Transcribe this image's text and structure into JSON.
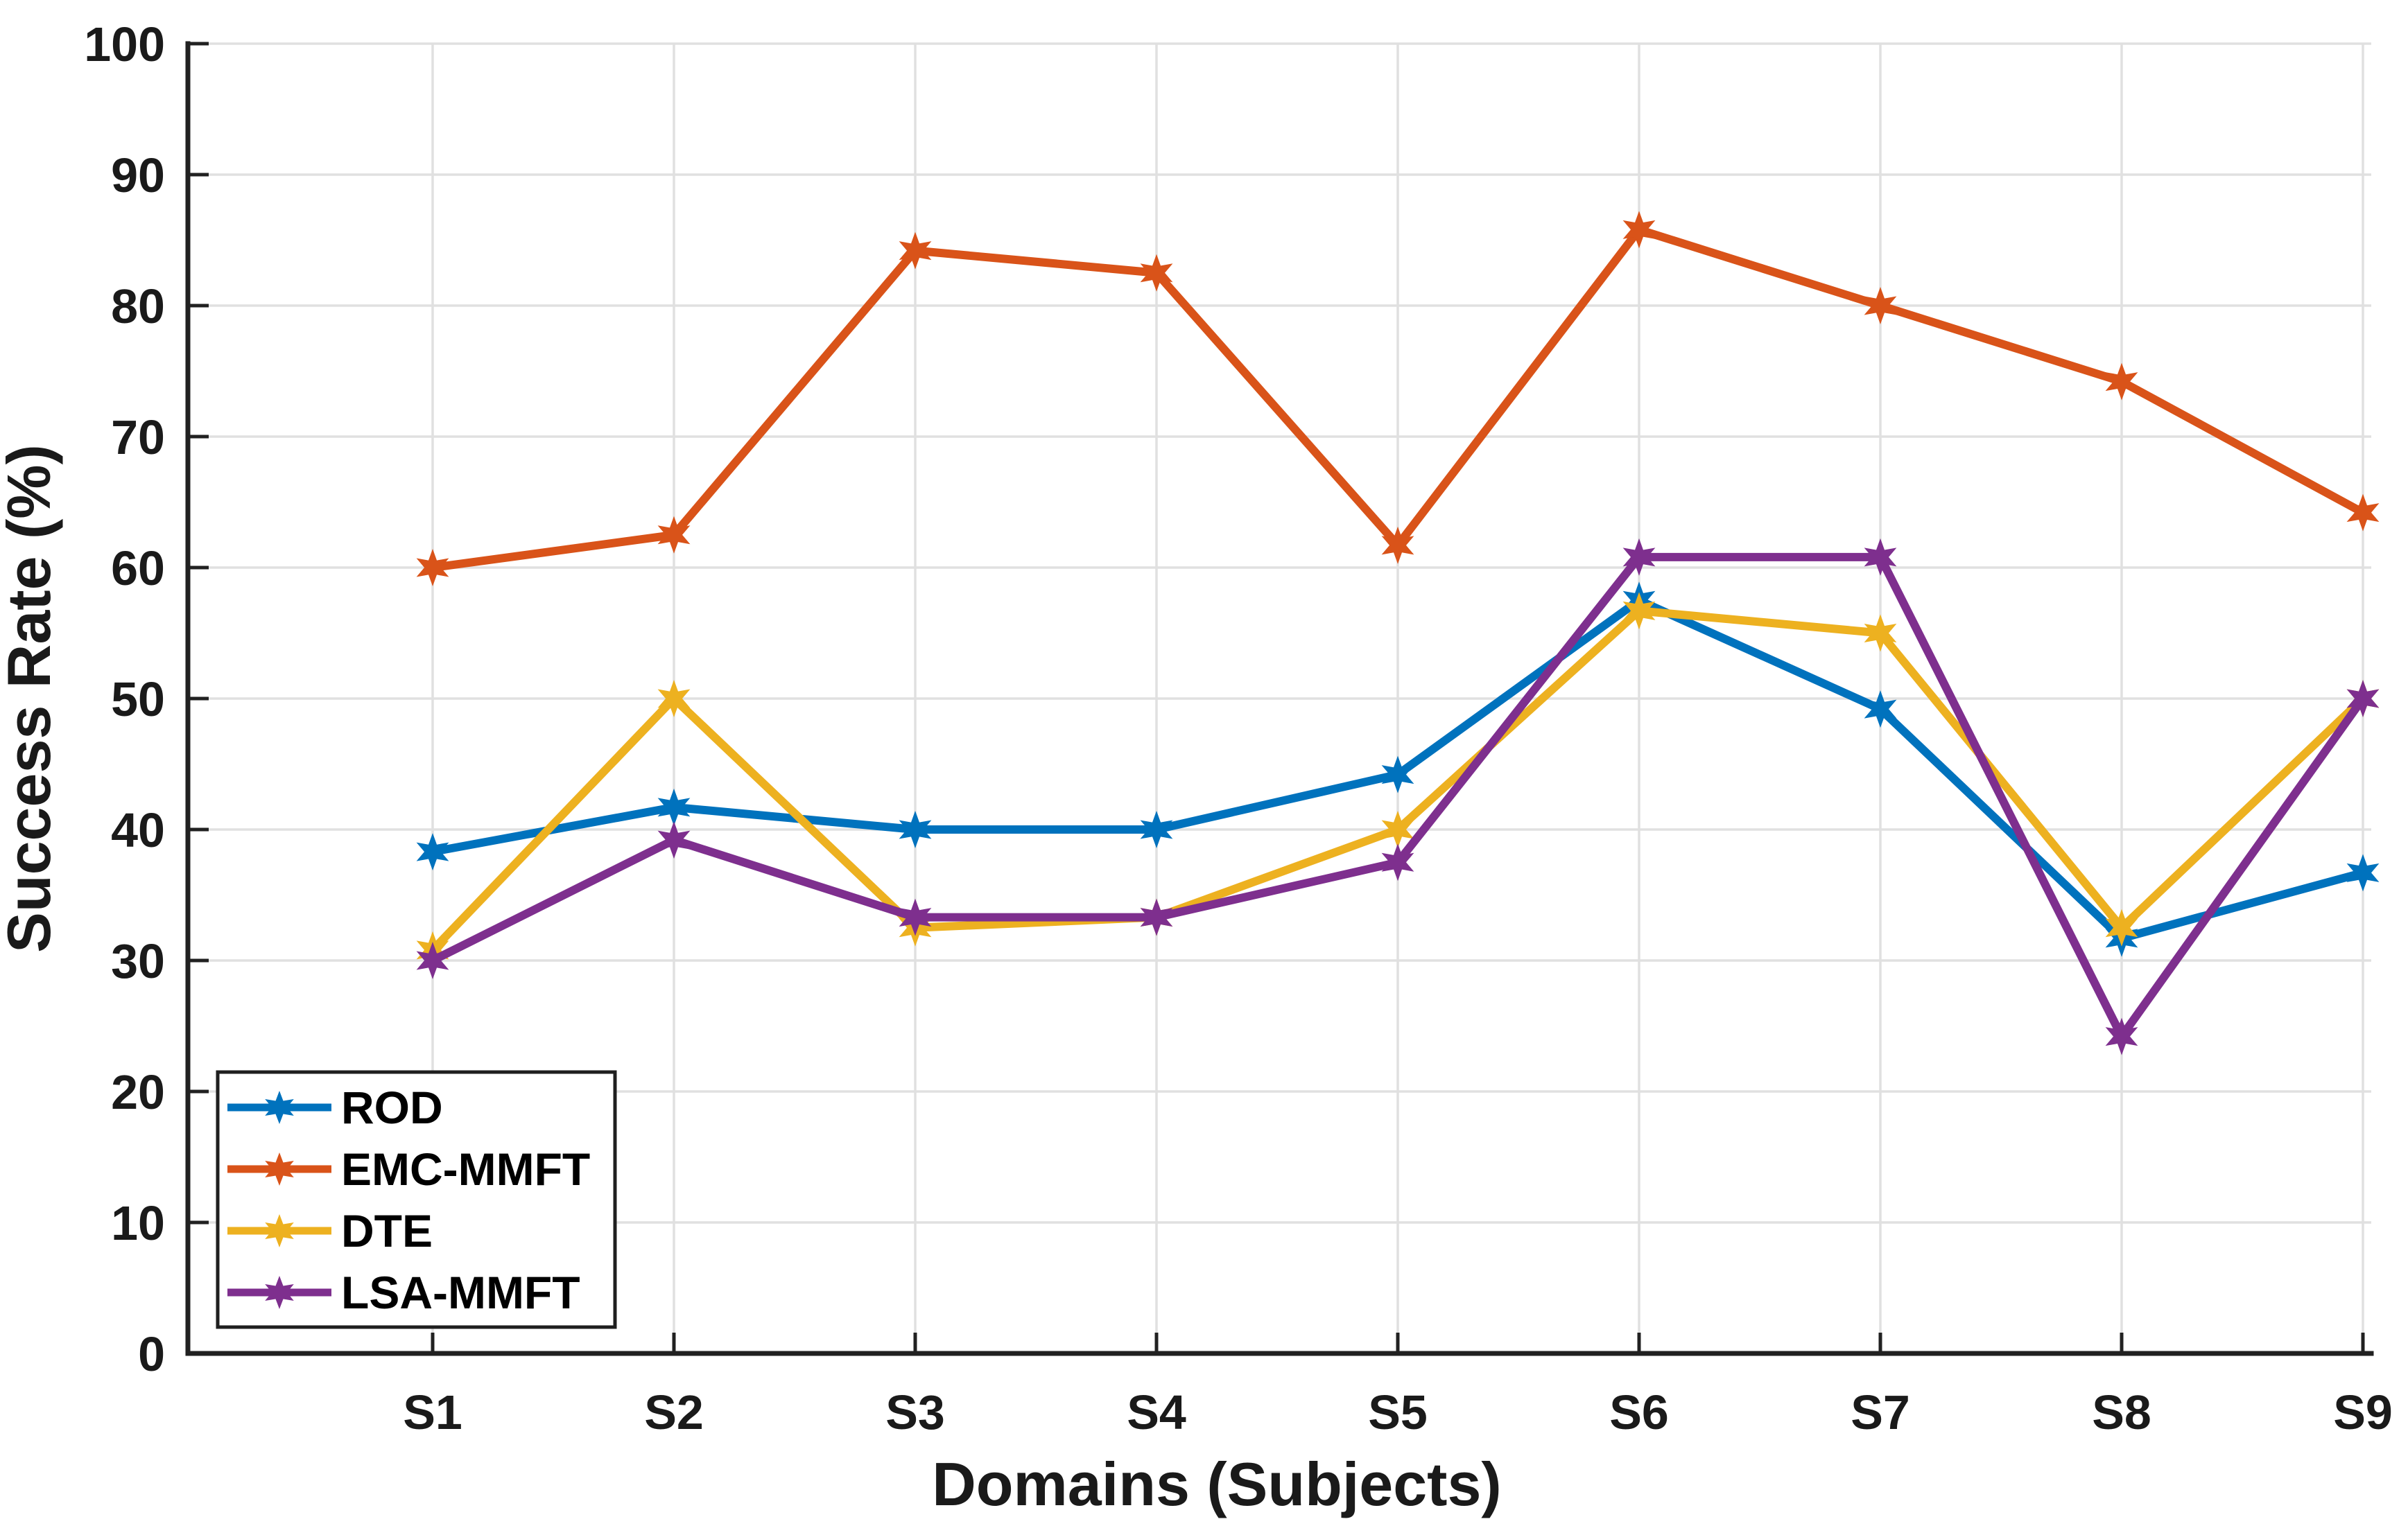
{
  "chart_data": {
    "type": "line",
    "title": "",
    "xlabel": "Domains (Subjects)",
    "ylabel": "Success Rate (%)",
    "categories": [
      "S1",
      "S2",
      "S3",
      "S4",
      "S5",
      "S6",
      "S7",
      "S8",
      "S9"
    ],
    "ylim": [
      0,
      100
    ],
    "yticks": [
      0,
      10,
      20,
      30,
      40,
      50,
      60,
      70,
      80,
      90,
      100
    ],
    "grid": true,
    "legend_position": "southwest",
    "marker": "hexagram",
    "series": [
      {
        "name": "ROD",
        "color": "#0072BD",
        "values": [
          38.3,
          41.7,
          40.0,
          40.0,
          44.2,
          57.5,
          49.2,
          31.7,
          36.7
        ]
      },
      {
        "name": "EMC-MMFT",
        "color": "#D95319",
        "values": [
          60.0,
          62.5,
          84.2,
          82.5,
          61.7,
          85.8,
          80.0,
          74.2,
          64.2
        ]
      },
      {
        "name": "DTE",
        "color": "#EDB120",
        "values": [
          30.8,
          50.0,
          32.5,
          33.3,
          40.0,
          56.7,
          55.0,
          32.5,
          50.0
        ]
      },
      {
        "name": "LSA-MMFT",
        "color": "#7E2F8E",
        "values": [
          30.0,
          39.2,
          33.3,
          33.3,
          37.5,
          60.8,
          60.8,
          24.2,
          50.0
        ]
      }
    ],
    "colors": {
      "axis": "#212121",
      "grid": "#E0E0E0",
      "text": "#1a1a1a",
      "background": "#ffffff"
    }
  }
}
